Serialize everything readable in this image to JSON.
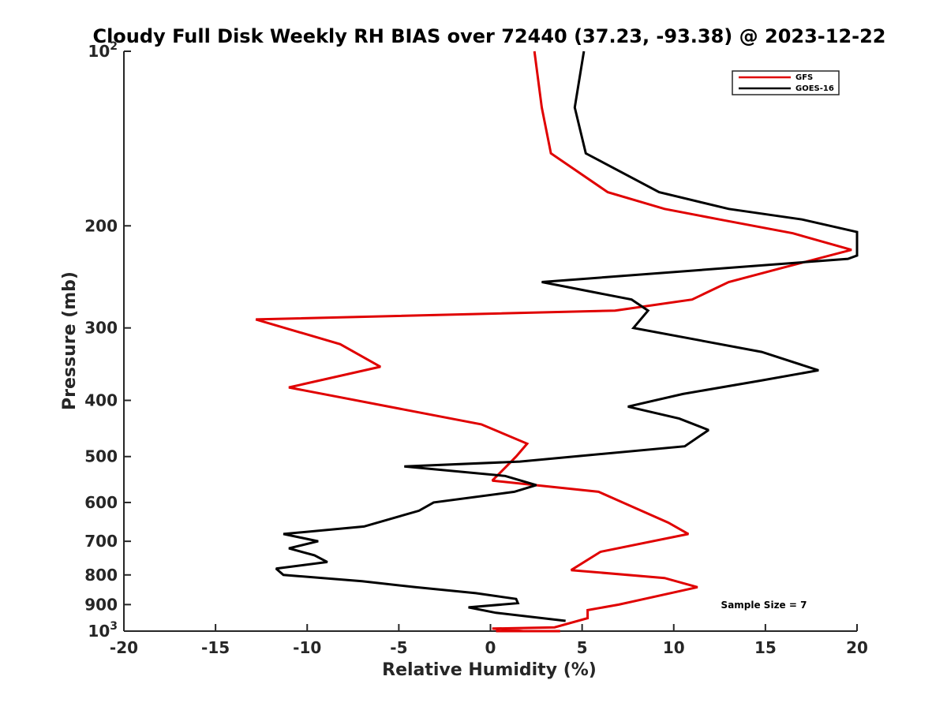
{
  "chart_data": {
    "type": "line",
    "title": "Cloudy Full Disk Weekly RH BIAS over 72440 (37.23, -93.38) @ 2023-12-22",
    "xlabel": "Relative Humidity (%)",
    "ylabel": "Pressure (mb)",
    "xlim": [
      -20,
      20
    ],
    "ylim": [
      100,
      1000
    ],
    "y_scale": "log",
    "y_reversed": true,
    "grid": false,
    "legend_position": "top-right",
    "x_ticks": [
      "-20",
      "-15",
      "-10",
      "-5",
      "0",
      "5",
      "10",
      "15",
      "20"
    ],
    "y_ticks": [
      {
        "label": "10",
        "exp": "2"
      },
      {
        "label": "200",
        "exp": ""
      },
      {
        "label": "300",
        "exp": ""
      },
      {
        "label": "400",
        "exp": ""
      },
      {
        "label": "500",
        "exp": ""
      },
      {
        "label": "600",
        "exp": ""
      },
      {
        "label": "700",
        "exp": ""
      },
      {
        "label": "800",
        "exp": ""
      },
      {
        "label": "900",
        "exp": ""
      },
      {
        "label": "10",
        "exp": "3"
      }
    ],
    "annotation": "Sample Size = 7",
    "series": [
      {
        "name": "GFS",
        "color": "#e00000",
        "points": [
          [
            2.4,
            100
          ],
          [
            2.8,
            125
          ],
          [
            3.3,
            150
          ],
          [
            6.4,
            175
          ],
          [
            9.5,
            187
          ],
          [
            12.5,
            195
          ],
          [
            16.5,
            206
          ],
          [
            19.7,
            220
          ],
          [
            16.0,
            236
          ],
          [
            13.0,
            250
          ],
          [
            11.0,
            268
          ],
          [
            6.8,
            280
          ],
          [
            -12.8,
            290
          ],
          [
            -8.2,
            320
          ],
          [
            -6.0,
            350
          ],
          [
            -11.0,
            380
          ],
          [
            -0.5,
            440
          ],
          [
            2.0,
            475
          ],
          [
            1.4,
            500
          ],
          [
            1.0,
            515
          ],
          [
            0.1,
            550
          ],
          [
            5.9,
            575
          ],
          [
            9.7,
            650
          ],
          [
            10.8,
            680
          ],
          [
            6.0,
            730
          ],
          [
            4.4,
            785
          ],
          [
            9.5,
            810
          ],
          [
            11.3,
            840
          ],
          [
            7.0,
            900
          ],
          [
            5.3,
            920
          ],
          [
            5.3,
            950
          ],
          [
            3.5,
            985
          ],
          [
            0.1,
            990
          ],
          [
            1.8,
            1000
          ],
          [
            0.3,
            1000
          ],
          [
            2.6,
            1000
          ],
          [
            3.8,
            1000
          ],
          [
            0.5,
            1000
          ],
          [
            1.5,
            1000
          ],
          [
            2.8,
            1000
          ],
          [
            1.2,
            1000
          ],
          [
            2.8,
            1000
          ],
          [
            3.5,
            1000
          ],
          [
            0.6,
            1000
          ],
          [
            0.3,
            1000
          ],
          [
            2.6,
            1000
          ]
        ]
      },
      {
        "name": "GOES-16",
        "color": "#000000",
        "points": [
          [
            5.1,
            100
          ],
          [
            4.6,
            125
          ],
          [
            5.2,
            150
          ],
          [
            9.2,
            175
          ],
          [
            13.0,
            187
          ],
          [
            17.0,
            195
          ],
          [
            20.0,
            205
          ],
          [
            20.0,
            225
          ],
          [
            19.5,
            228
          ],
          [
            2.8,
            250
          ],
          [
            7.7,
            268
          ],
          [
            8.6,
            280
          ],
          [
            7.8,
            300
          ],
          [
            14.8,
            330
          ],
          [
            17.9,
            355
          ],
          [
            14.7,
            370
          ],
          [
            10.5,
            390
          ],
          [
            7.5,
            410
          ],
          [
            10.3,
            430
          ],
          [
            11.9,
            450
          ],
          [
            10.6,
            480
          ],
          [
            1.6,
            510
          ],
          [
            -4.7,
            520
          ],
          [
            0.8,
            540
          ],
          [
            2.5,
            560
          ],
          [
            1.3,
            575
          ],
          [
            -3.1,
            600
          ],
          [
            -3.9,
            620
          ],
          [
            -6.9,
            660
          ],
          [
            -11.3,
            680
          ],
          [
            -9.4,
            700
          ],
          [
            -11.0,
            720
          ],
          [
            -9.6,
            740
          ],
          [
            -8.9,
            760
          ],
          [
            -11.7,
            780
          ],
          [
            -11.3,
            800
          ],
          [
            -7.0,
            820
          ],
          [
            -4.1,
            840
          ],
          [
            -0.8,
            860
          ],
          [
            1.4,
            880
          ],
          [
            1.5,
            895
          ],
          [
            -1.2,
            910
          ],
          [
            0.3,
            930
          ],
          [
            4.1,
            960
          ]
        ]
      }
    ]
  }
}
